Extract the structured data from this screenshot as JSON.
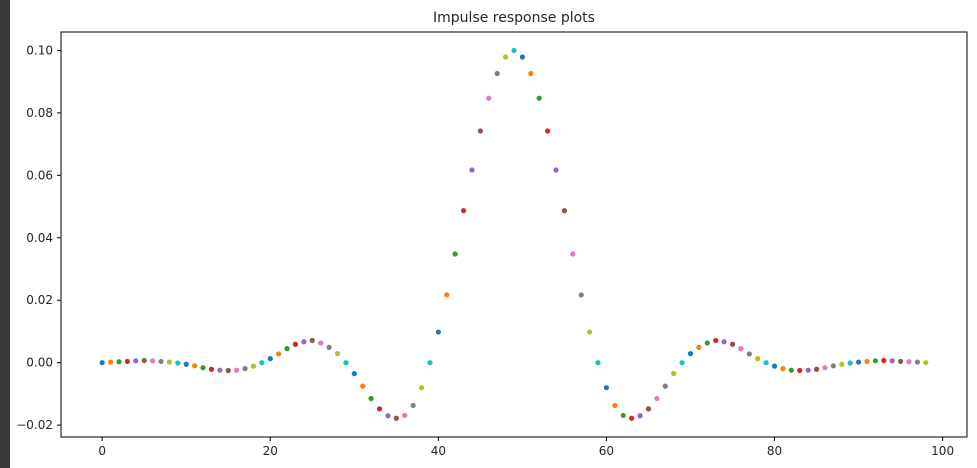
{
  "chart_data": {
    "type": "scatter",
    "title": "Impulse response plots",
    "xlabel": "",
    "ylabel": "",
    "xlim": [
      -4.9,
      102.9
    ],
    "ylim": [
      -0.0238,
      0.1059
    ],
    "x_ticks": [
      0,
      20,
      40,
      60,
      80,
      100
    ],
    "x_tick_labels": [
      "0",
      "20",
      "40",
      "60",
      "80",
      "100"
    ],
    "y_ticks": [
      -0.02,
      0.0,
      0.02,
      0.04,
      0.06,
      0.08,
      0.1
    ],
    "y_tick_labels": [
      "−0.02",
      "0.00",
      "0.02",
      "0.04",
      "0.06",
      "0.08",
      "0.10"
    ],
    "grid": false,
    "color_cycle": [
      "#1f77b4",
      "#ff7f0e",
      "#2ca02c",
      "#d62728",
      "#9467bd",
      "#8c564b",
      "#e377c2",
      "#7f7f7f",
      "#bcbd22",
      "#17becf"
    ],
    "x": [
      0,
      1,
      2,
      3,
      4,
      5,
      6,
      7,
      8,
      9,
      10,
      11,
      12,
      13,
      14,
      15,
      16,
      17,
      18,
      19,
      20,
      21,
      22,
      23,
      24,
      25,
      26,
      27,
      28,
      29,
      30,
      31,
      32,
      33,
      34,
      35,
      36,
      37,
      38,
      39,
      40,
      41,
      42,
      43,
      44,
      45,
      46,
      47,
      48,
      49,
      50,
      51,
      52,
      53,
      54,
      55,
      56,
      57,
      58,
      59,
      60,
      61,
      62,
      63,
      64,
      65,
      66,
      67,
      68,
      69,
      70,
      71,
      72,
      73,
      74,
      75,
      76,
      77,
      78,
      79,
      80,
      81,
      82,
      83,
      84,
      85,
      86,
      87,
      88,
      89,
      90,
      91,
      92,
      93,
      94,
      95,
      96,
      97,
      98
    ],
    "values": [
      0.0,
      0.0002,
      0.0003,
      0.0004,
      0.0006,
      0.0007,
      0.0006,
      0.0004,
      0.0002,
      -0.0001,
      -0.0005,
      -0.001,
      -0.0016,
      -0.0021,
      -0.0024,
      -0.0025,
      -0.0024,
      -0.0019,
      -0.0011,
      -0.0,
      0.0013,
      0.0028,
      0.0045,
      0.0059,
      0.0067,
      0.0071,
      0.0063,
      0.0049,
      0.0029,
      0.0,
      -0.0035,
      -0.0075,
      -0.0115,
      -0.0148,
      -0.017,
      -0.0178,
      -0.0169,
      -0.0137,
      -0.008,
      0.0,
      0.0098,
      0.0217,
      0.0348,
      0.0487,
      0.0617,
      0.0742,
      0.0847,
      0.0926,
      0.0979,
      0.1,
      0.0979,
      0.0926,
      0.0847,
      0.0742,
      0.0617,
      0.0487,
      0.0348,
      0.0217,
      0.0098,
      0.0,
      -0.008,
      -0.0137,
      -0.0169,
      -0.0178,
      -0.017,
      -0.0148,
      -0.0115,
      -0.0075,
      -0.0035,
      0.0,
      0.0029,
      0.0049,
      0.0063,
      0.0071,
      0.0067,
      0.0059,
      0.0045,
      0.0028,
      0.0013,
      -0.0,
      -0.0011,
      -0.0019,
      -0.0024,
      -0.0025,
      -0.0024,
      -0.0021,
      -0.0016,
      -0.001,
      -0.0005,
      -0.0001,
      0.0002,
      0.0004,
      0.0006,
      0.0007,
      0.0006,
      0.0004,
      0.0003,
      0.0002,
      0.0
    ]
  }
}
